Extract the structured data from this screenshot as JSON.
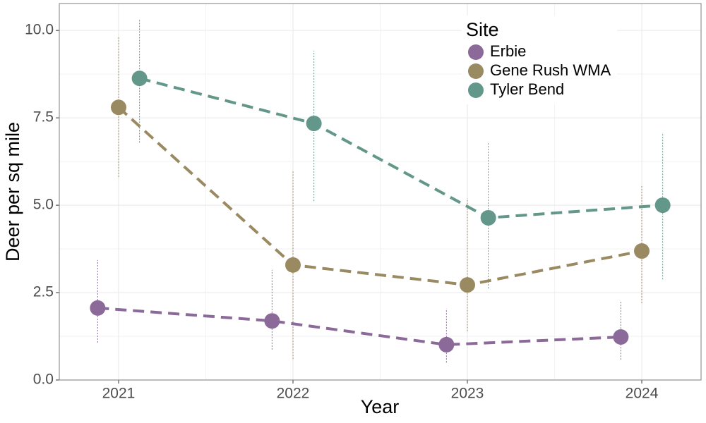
{
  "chart_data": {
    "type": "line",
    "x_label": "Year",
    "y_label": "Deer per sq mile",
    "legend_title": "Site",
    "legend_position": "top-right",
    "xlim": [
      2020.66,
      2024.34
    ],
    "xticks": [
      2021,
      2022,
      2023,
      2024
    ],
    "ylim": [
      0,
      10.77
    ],
    "yticks": [
      {
        "value": 0,
        "label": "0.0"
      },
      2.5,
      {
        "value": 5,
        "label": "5.0"
      },
      7.5,
      {
        "value": 10,
        "label": "10.0"
      }
    ],
    "grid": true,
    "series": [
      {
        "name": "Erbie",
        "color": "#8b6a9a",
        "x": [
          2020.88,
          2021.88,
          2022.88,
          2023.88
        ],
        "values": [
          2.06,
          1.69,
          1.01,
          1.23
        ],
        "lower": [
          1.07,
          0.87,
          0.5,
          0.58
        ],
        "upper": [
          3.43,
          3.15,
          2.04,
          2.26
        ]
      },
      {
        "name": "Gene Rush WMA",
        "color": "#9a8a62",
        "x": [
          2021,
          2022,
          2023,
          2024
        ],
        "values": [
          7.8,
          3.29,
          2.72,
          3.69
        ],
        "lower": [
          5.81,
          0.6,
          1.4,
          2.2
        ],
        "upper": [
          9.82,
          5.99,
          5.2,
          5.58
        ]
      },
      {
        "name": "Tyler Bend",
        "color": "#62978a",
        "x": [
          2021.12,
          2022.12,
          2023.12,
          2024.12
        ],
        "values": [
          8.63,
          7.34,
          4.64,
          5.0
        ],
        "lower": [
          6.79,
          5.12,
          2.62,
          2.88
        ],
        "upper": [
          10.3,
          9.42,
          6.79,
          7.08
        ]
      }
    ]
  }
}
